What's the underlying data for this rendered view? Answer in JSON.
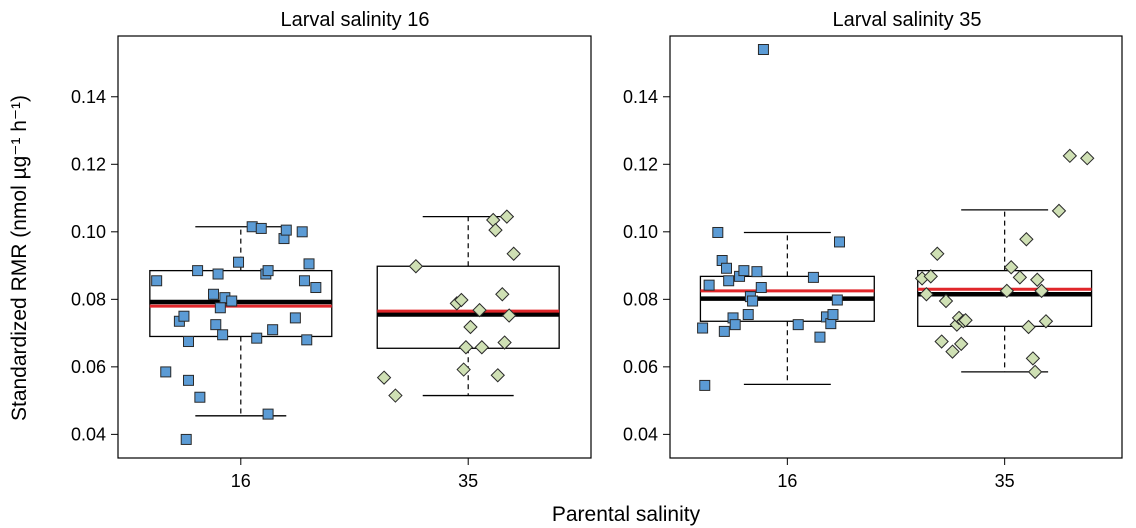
{
  "figure": {
    "ylabel": "Standardized RMR (nmol µg⁻¹ h⁻¹)",
    "xlabel": "Parental salinity"
  },
  "colors": {
    "group16_fill": "#5b9bd5",
    "group35_fill": "#cfe0b4",
    "point_stroke": "#2a2a2a",
    "median": "#000000",
    "mean": "#e0262a",
    "box_stroke": "#000000"
  },
  "chart_data": [
    {
      "type": "box",
      "title": "Larval salinity 16",
      "xlabel": "Parental salinity",
      "ylabel": "Standardized RMR (nmol µg⁻¹ h⁻¹)",
      "ylim": [
        0.033,
        0.158
      ],
      "yticks": [
        0.04,
        0.06,
        0.08,
        0.1,
        0.12,
        0.14
      ],
      "yticklabels": [
        "0.04",
        "0.06",
        "0.08",
        "0.10",
        "0.12",
        "0.14"
      ],
      "categories": [
        "16",
        "35"
      ],
      "grid": false,
      "boxes": [
        {
          "category": "16",
          "whisker_low": 0.0455,
          "q1": 0.069,
          "median": 0.0792,
          "q3": 0.0885,
          "whisker_high": 0.1015,
          "mean": 0.078,
          "marker": "square",
          "points": [
            {
              "dx": -0.37,
              "y": 0.0855
            },
            {
              "dx": -0.33,
              "y": 0.0585
            },
            {
              "dx": -0.27,
              "y": 0.0735
            },
            {
              "dx": -0.25,
              "y": 0.075
            },
            {
              "dx": -0.23,
              "y": 0.0675
            },
            {
              "dx": -0.24,
              "y": 0.0385
            },
            {
              "dx": -0.23,
              "y": 0.056
            },
            {
              "dx": -0.19,
              "y": 0.0885
            },
            {
              "dx": -0.18,
              "y": 0.051
            },
            {
              "dx": -0.12,
              "y": 0.0815
            },
            {
              "dx": -0.11,
              "y": 0.0725
            },
            {
              "dx": -0.1,
              "y": 0.0875
            },
            {
              "dx": -0.09,
              "y": 0.0775
            },
            {
              "dx": -0.08,
              "y": 0.0695
            },
            {
              "dx": -0.07,
              "y": 0.0805
            },
            {
              "dx": -0.04,
              "y": 0.0795
            },
            {
              "dx": -0.01,
              "y": 0.091
            },
            {
              "dx": 0.05,
              "y": 0.1015
            },
            {
              "dx": 0.07,
              "y": 0.0685
            },
            {
              "dx": 0.09,
              "y": 0.101
            },
            {
              "dx": 0.11,
              "y": 0.0875
            },
            {
              "dx": 0.12,
              "y": 0.0885
            },
            {
              "dx": 0.12,
              "y": 0.046
            },
            {
              "dx": 0.14,
              "y": 0.071
            },
            {
              "dx": 0.19,
              "y": 0.098
            },
            {
              "dx": 0.2,
              "y": 0.1005
            },
            {
              "dx": 0.24,
              "y": 0.0745
            },
            {
              "dx": 0.27,
              "y": 0.1
            },
            {
              "dx": 0.28,
              "y": 0.0855
            },
            {
              "dx": 0.29,
              "y": 0.068
            },
            {
              "dx": 0.3,
              "y": 0.0905
            },
            {
              "dx": 0.33,
              "y": 0.0835
            }
          ]
        },
        {
          "category": "35",
          "whisker_low": 0.0515,
          "q1": 0.0655,
          "median": 0.0755,
          "q3": 0.0898,
          "whisker_high": 0.1045,
          "mean": 0.0765,
          "marker": "diamond",
          "points": [
            {
              "dx": -0.37,
              "y": 0.0568
            },
            {
              "dx": -0.32,
              "y": 0.0515
            },
            {
              "dx": -0.23,
              "y": 0.0898
            },
            {
              "dx": -0.05,
              "y": 0.0788
            },
            {
              "dx": -0.03,
              "y": 0.0798
            },
            {
              "dx": -0.02,
              "y": 0.0592
            },
            {
              "dx": -0.01,
              "y": 0.0658
            },
            {
              "dx": 0.01,
              "y": 0.0718
            },
            {
              "dx": 0.05,
              "y": 0.0768
            },
            {
              "dx": 0.06,
              "y": 0.0658
            },
            {
              "dx": 0.11,
              "y": 0.1035
            },
            {
              "dx": 0.12,
              "y": 0.1005
            },
            {
              "dx": 0.13,
              "y": 0.0575
            },
            {
              "dx": 0.15,
              "y": 0.0815
            },
            {
              "dx": 0.16,
              "y": 0.0672
            },
            {
              "dx": 0.17,
              "y": 0.1045
            },
            {
              "dx": 0.18,
              "y": 0.0752
            },
            {
              "dx": 0.2,
              "y": 0.0935
            }
          ]
        }
      ]
    },
    {
      "type": "box",
      "title": "Larval salinity 35",
      "xlabel": "Parental salinity",
      "ylabel": "Standardized RMR (nmol µg⁻¹ h⁻¹)",
      "ylim": [
        0.033,
        0.158
      ],
      "yticks": [
        0.04,
        0.06,
        0.08,
        0.1,
        0.12,
        0.14
      ],
      "yticklabels": [
        "0.04",
        "0.06",
        "0.08",
        "0.10",
        "0.12",
        "0.14"
      ],
      "categories": [
        "16",
        "35"
      ],
      "grid": false,
      "boxes": [
        {
          "category": "16",
          "whisker_low": 0.0548,
          "q1": 0.0735,
          "median": 0.0802,
          "q3": 0.0868,
          "whisker_high": 0.0998,
          "mean": 0.0825,
          "marker": "square",
          "points": [
            {
              "dx": -0.39,
              "y": 0.0715
            },
            {
              "dx": -0.38,
              "y": 0.0545
            },
            {
              "dx": -0.36,
              "y": 0.0842
            },
            {
              "dx": -0.32,
              "y": 0.0998
            },
            {
              "dx": -0.3,
              "y": 0.0915
            },
            {
              "dx": -0.29,
              "y": 0.0705
            },
            {
              "dx": -0.28,
              "y": 0.0892
            },
            {
              "dx": -0.27,
              "y": 0.0855
            },
            {
              "dx": -0.25,
              "y": 0.0745
            },
            {
              "dx": -0.24,
              "y": 0.0725
            },
            {
              "dx": -0.22,
              "y": 0.0868
            },
            {
              "dx": -0.2,
              "y": 0.0885
            },
            {
              "dx": -0.18,
              "y": 0.0755
            },
            {
              "dx": -0.17,
              "y": 0.0808
            },
            {
              "dx": -0.16,
              "y": 0.0795
            },
            {
              "dx": -0.14,
              "y": 0.0882
            },
            {
              "dx": -0.12,
              "y": 0.0835
            },
            {
              "dx": -0.11,
              "y": 0.154
            },
            {
              "dx": 0.05,
              "y": 0.0725
            },
            {
              "dx": 0.12,
              "y": 0.0865
            },
            {
              "dx": 0.15,
              "y": 0.0688
            },
            {
              "dx": 0.18,
              "y": 0.0748
            },
            {
              "dx": 0.2,
              "y": 0.0728
            },
            {
              "dx": 0.21,
              "y": 0.0755
            },
            {
              "dx": 0.23,
              "y": 0.0798
            },
            {
              "dx": 0.24,
              "y": 0.097
            }
          ]
        },
        {
          "category": "35",
          "whisker_low": 0.0585,
          "q1": 0.072,
          "median": 0.0815,
          "q3": 0.0885,
          "whisker_high": 0.1065,
          "mean": 0.083,
          "marker": "diamond",
          "points": [
            {
              "dx": -0.38,
              "y": 0.0862
            },
            {
              "dx": -0.36,
              "y": 0.0815
            },
            {
              "dx": -0.34,
              "y": 0.0868
            },
            {
              "dx": -0.31,
              "y": 0.0935
            },
            {
              "dx": -0.29,
              "y": 0.0675
            },
            {
              "dx": -0.27,
              "y": 0.0795
            },
            {
              "dx": -0.24,
              "y": 0.0645
            },
            {
              "dx": -0.22,
              "y": 0.0725
            },
            {
              "dx": -0.21,
              "y": 0.0745
            },
            {
              "dx": -0.2,
              "y": 0.0668
            },
            {
              "dx": -0.19,
              "y": 0.0735
            },
            {
              "dx": -0.18,
              "y": 0.0738
            },
            {
              "dx": 0.01,
              "y": 0.0825
            },
            {
              "dx": 0.03,
              "y": 0.0895
            },
            {
              "dx": 0.07,
              "y": 0.0865
            },
            {
              "dx": 0.1,
              "y": 0.0978
            },
            {
              "dx": 0.11,
              "y": 0.0718
            },
            {
              "dx": 0.13,
              "y": 0.0625
            },
            {
              "dx": 0.14,
              "y": 0.0585
            },
            {
              "dx": 0.15,
              "y": 0.0858
            },
            {
              "dx": 0.17,
              "y": 0.0825
            },
            {
              "dx": 0.19,
              "y": 0.0735
            },
            {
              "dx": 0.25,
              "y": 0.1062
            },
            {
              "dx": 0.3,
              "y": 0.1225
            },
            {
              "dx": 0.38,
              "y": 0.1218
            }
          ]
        }
      ]
    }
  ]
}
